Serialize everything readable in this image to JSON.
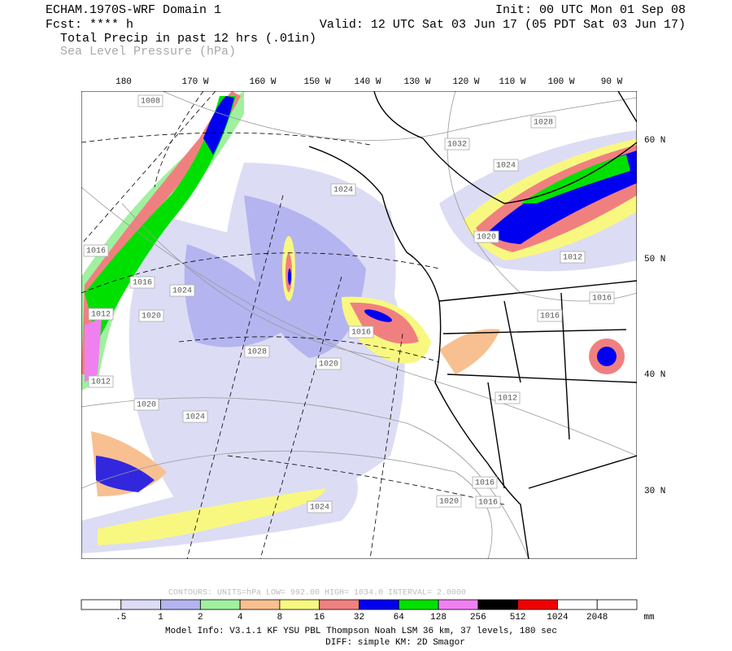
{
  "header": {
    "model": "ECHAM.1970S-WRF Domain 1",
    "fcst": "Fcst: **** h",
    "field1": "Total Precip in past 12 hrs (.01in)",
    "field2": "Sea Level Pressure (hPa)",
    "init": "Init: 00 UTC Mon 01 Sep 08",
    "valid": "Valid: 12 UTC Sat 03 Jun 17 (05 PDT Sat 03 Jun 17)"
  },
  "map": {
    "lon_labels": [
      "180",
      "170 W",
      "160 W",
      "150 W",
      "140 W",
      "130 W",
      "120 W",
      "110 W",
      "100 W",
      "90 W"
    ],
    "lat_labels": [
      "60 N",
      "50 N",
      "40 N",
      "30 N"
    ],
    "pressure_labels": [
      "1008",
      "1028",
      "1032",
      "1024",
      "1024",
      "1020",
      "1012",
      "1016",
      "1016",
      "1024",
      "1016",
      "1016",
      "1012",
      "1020",
      "1016",
      "1028",
      "1020",
      "1012",
      "1020",
      "1024",
      "1012",
      "1016",
      "1020",
      "1016",
      "1024"
    ]
  },
  "contours": "CONTOURS:  UNITS=hPa  LOW=  992.00    HIGH=  1034.0    INTERVAL=   2.0000",
  "colorbar": {
    "labels": [
      ".5",
      "1",
      "2",
      "4",
      "8",
      "16",
      "32",
      "64",
      "128",
      "256",
      "512",
      "1024",
      "2048"
    ],
    "unit": "mm",
    "colors": [
      "#ffffff",
      "#dcdcf5",
      "#b4b4f0",
      "#a0f0a0",
      "#f8c090",
      "#f8f880",
      "#f08080",
      "#0000f0",
      "#00e000",
      "#f080f0",
      "#000000",
      "#f00000",
      "#ffffff",
      "#ffffff"
    ]
  },
  "footer": {
    "line1": "Model Info: V3.1.1    KF      YSU PBL   Thompson     Noah LSM   36 km,    37 levels,   180 sec",
    "line2": "DIFF: simple KM: 2D Smagor"
  }
}
